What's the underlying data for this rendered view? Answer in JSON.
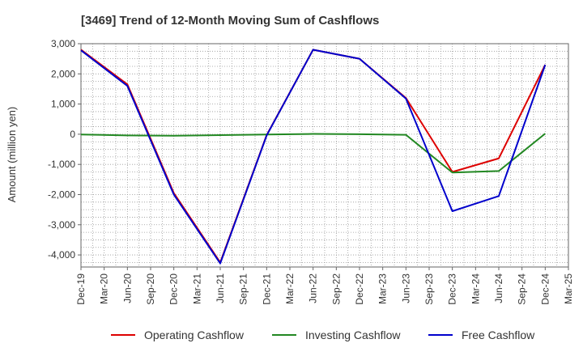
{
  "chart_data": {
    "type": "line",
    "title": "[3469]  Trend of 12-Month Moving Sum of Cashflows",
    "xlabel": "",
    "ylabel": "Amount (million yen)",
    "ylim": [
      -4400,
      3000
    ],
    "yticks": [
      3000,
      2000,
      1000,
      0,
      -1000,
      -2000,
      -3000,
      -4000
    ],
    "ytick_labels": [
      "3,000",
      "2,000",
      "1,000",
      "0",
      "-1,000",
      "-2,000",
      "-3,000",
      "-4,000"
    ],
    "categories": [
      "Dec-19",
      "Mar-20",
      "Jun-20",
      "Sep-20",
      "Dec-20",
      "Mar-21",
      "Jun-21",
      "Sep-21",
      "Dec-21",
      "Mar-22",
      "Jun-22",
      "Sep-22",
      "Dec-22",
      "Mar-23",
      "Jun-23",
      "Sep-23",
      "Dec-23",
      "Mar-24",
      "Jun-24",
      "Sep-24",
      "Dec-24",
      "Mar-25"
    ],
    "grid": true,
    "legend_position": "bottom",
    "series": [
      {
        "name": "Operating Cashflow",
        "color": "#dd0000",
        "points": [
          {
            "x": "Dec-19",
            "y": 2800
          },
          {
            "x": "Jun-20",
            "y": 1650
          },
          {
            "x": "Dec-20",
            "y": -1950
          },
          {
            "x": "Jun-21",
            "y": -4250
          },
          {
            "x": "Dec-21",
            "y": -30
          },
          {
            "x": "Jun-22",
            "y": 2800
          },
          {
            "x": "Dec-22",
            "y": 2500
          },
          {
            "x": "Jun-23",
            "y": 1200
          },
          {
            "x": "Dec-23",
            "y": -1250
          },
          {
            "x": "Jun-24",
            "y": -800
          },
          {
            "x": "Dec-24",
            "y": 2300
          }
        ]
      },
      {
        "name": "Investing Cashflow",
        "color": "#228822",
        "points": [
          {
            "x": "Dec-19",
            "y": -10
          },
          {
            "x": "Jun-20",
            "y": -40
          },
          {
            "x": "Dec-20",
            "y": -50
          },
          {
            "x": "Jun-21",
            "y": -30
          },
          {
            "x": "Dec-21",
            "y": -10
          },
          {
            "x": "Jun-22",
            "y": 10
          },
          {
            "x": "Dec-22",
            "y": 0
          },
          {
            "x": "Jun-23",
            "y": -20
          },
          {
            "x": "Dec-23",
            "y": -1270
          },
          {
            "x": "Jun-24",
            "y": -1220
          },
          {
            "x": "Dec-24",
            "y": 20
          }
        ]
      },
      {
        "name": "Free Cashflow",
        "color": "#0000cc",
        "points": [
          {
            "x": "Dec-19",
            "y": 2780
          },
          {
            "x": "Jun-20",
            "y": 1600
          },
          {
            "x": "Dec-20",
            "y": -2000
          },
          {
            "x": "Jun-21",
            "y": -4280
          },
          {
            "x": "Dec-21",
            "y": -40
          },
          {
            "x": "Jun-22",
            "y": 2800
          },
          {
            "x": "Dec-22",
            "y": 2500
          },
          {
            "x": "Jun-23",
            "y": 1180
          },
          {
            "x": "Dec-23",
            "y": -2550
          },
          {
            "x": "Jun-24",
            "y": -2050
          },
          {
            "x": "Dec-24",
            "y": 2300
          }
        ]
      }
    ]
  }
}
